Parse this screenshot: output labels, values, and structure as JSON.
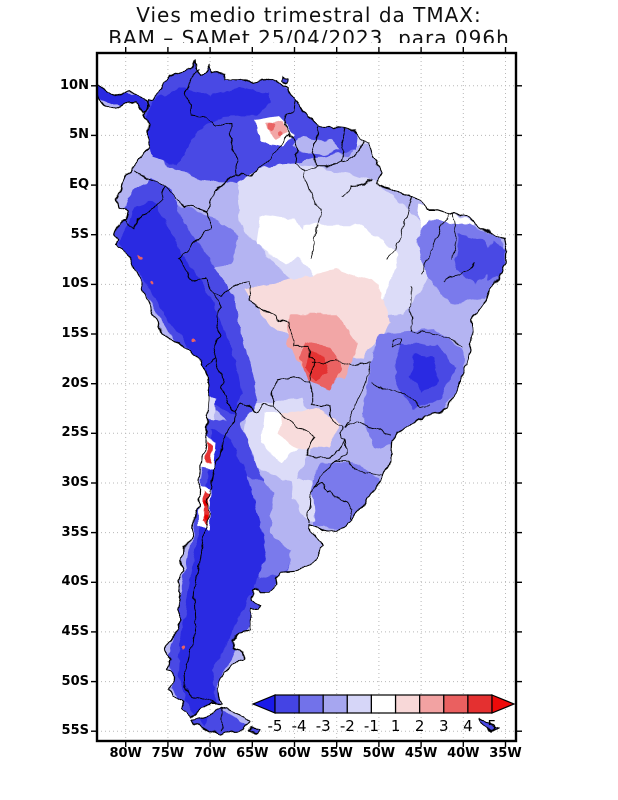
{
  "title": {
    "line1": "Vies medio trimestral da TMAX:",
    "line2": "BAM – SAMet 25/04/2023  para 096h"
  },
  "axes": {
    "lat_ticks": [
      {
        "label": "10N",
        "deg": 10
      },
      {
        "label": "5N",
        "deg": 5
      },
      {
        "label": "EQ",
        "deg": 0
      },
      {
        "label": "5S",
        "deg": -5
      },
      {
        "label": "10S",
        "deg": -10
      },
      {
        "label": "15S",
        "deg": -15
      },
      {
        "label": "20S",
        "deg": -20
      },
      {
        "label": "25S",
        "deg": -25
      },
      {
        "label": "30S",
        "deg": -30
      },
      {
        "label": "35S",
        "deg": -35
      },
      {
        "label": "40S",
        "deg": -40
      },
      {
        "label": "45S",
        "deg": -45
      },
      {
        "label": "50S",
        "deg": -50
      },
      {
        "label": "55S",
        "deg": -55
      }
    ],
    "lon_ticks": [
      {
        "label": "80W",
        "deg": -80
      },
      {
        "label": "75W",
        "deg": -75
      },
      {
        "label": "70W",
        "deg": -70
      },
      {
        "label": "65W",
        "deg": -65
      },
      {
        "label": "60W",
        "deg": -60
      },
      {
        "label": "55W",
        "deg": -55
      },
      {
        "label": "50W",
        "deg": -50
      },
      {
        "label": "45W",
        "deg": -45
      },
      {
        "label": "40W",
        "deg": -40
      },
      {
        "label": "35W",
        "deg": -35
      }
    ],
    "grid": "dotted"
  },
  "colorbar": {
    "tick_labels": [
      "-5",
      "-4",
      "-3",
      "-2",
      "-1",
      "1",
      "2",
      "3",
      "4",
      "5"
    ],
    "under_color": "#1A1AE8",
    "segment_colors": [
      "#4444E4",
      "#7272EA",
      "#A6A6F0",
      "#D6D6F8",
      "#FFFFFF",
      "#F8D8D8",
      "#F2A2A2",
      "#EA6060",
      "#E43030"
    ],
    "over_color": "#EE0A0A"
  },
  "palette": {
    "blue5": "#2B2BE2",
    "blue4": "#4A4AE4",
    "blue3": "#7A7AEC",
    "blue2": "#B4B4F2",
    "blue1": "#DCDCF8",
    "white": "#FFFFFF",
    "red1": "#F8DCDC",
    "red2": "#F2A6A6",
    "red3": "#EA6262",
    "red4": "#E43030",
    "red5": "#E60000",
    "border": "#000000",
    "grid": "#B8B8B8",
    "ocean": "#FFFFFF"
  },
  "chart_data": {
    "type": "heatmap",
    "title": "Vies medio trimestral da TMAX: BAM – SAMet 25/04/2023 para 096h",
    "variable": "Vies (bias) da TMAX, BAM – SAMet, 096h",
    "x_axis": {
      "ticks": [
        "80W",
        "75W",
        "70W",
        "65W",
        "60W",
        "55W",
        "50W",
        "45W",
        "40W",
        "35W"
      ],
      "approx_range": [
        "83W",
        "34W"
      ]
    },
    "y_axis": {
      "ticks": [
        "10N",
        "5N",
        "EQ",
        "5S",
        "10S",
        "15S",
        "20S",
        "25S",
        "30S",
        "35S",
        "40S",
        "45S",
        "50S",
        "55S"
      ],
      "approx_range": [
        "13N",
        "56S"
      ]
    },
    "colorbar": {
      "levels": [
        -5,
        -4,
        -3,
        -2,
        -1,
        1,
        2,
        3,
        4,
        5
      ],
      "under_color": "#1A1AE8",
      "segment_colors": [
        "#4444E4",
        "#7272EA",
        "#A6A6F0",
        "#D6D6F8",
        "#FFFFFF",
        "#F8D8D8",
        "#F2A2A2",
        "#EA6060",
        "#E43030"
      ],
      "over_color": "#EE0A0A",
      "orientation": "horizontal",
      "position": "bottom-right inside frame"
    },
    "regions_summary": [
      {
        "region": "Andes cordillera from Colombia to central Chile",
        "approx_bias": -5
      },
      {
        "region": "Northern Colombia and Venezuela",
        "approx_bias": -4
      },
      {
        "region": "Amazon basin interior",
        "approx_bias": -1.5
      },
      {
        "region": "Central band north Brazil (Maranhao/Tocantins)",
        "approx_bias": 0
      },
      {
        "region": "Central Brazil / Mato Grosso lowlands",
        "approx_bias": 2
      },
      {
        "region": "Pantanal red core (17S-20S, 58W-55W)",
        "approx_bias": 3.5
      },
      {
        "region": "Subtropical Chilean Andes spots (26S-34S)",
        "approx_bias": 4.5
      },
      {
        "region": "Gran Sabana spots (4N-7N, 63W-60W)",
        "approx_bias": 2.5
      },
      {
        "region": "Southeast Brazil (Minas Gerais)",
        "approx_bias": -4
      },
      {
        "region": "Northeast Brazil eastern tip",
        "approx_bias": -3
      },
      {
        "region": "Chaco / Paraguay / NE Argentina",
        "approx_bias": 0.5
      },
      {
        "region": "Patagonia, southern Argentina/Chile, Tierra del Fuego",
        "approx_bias": -5
      }
    ]
  }
}
